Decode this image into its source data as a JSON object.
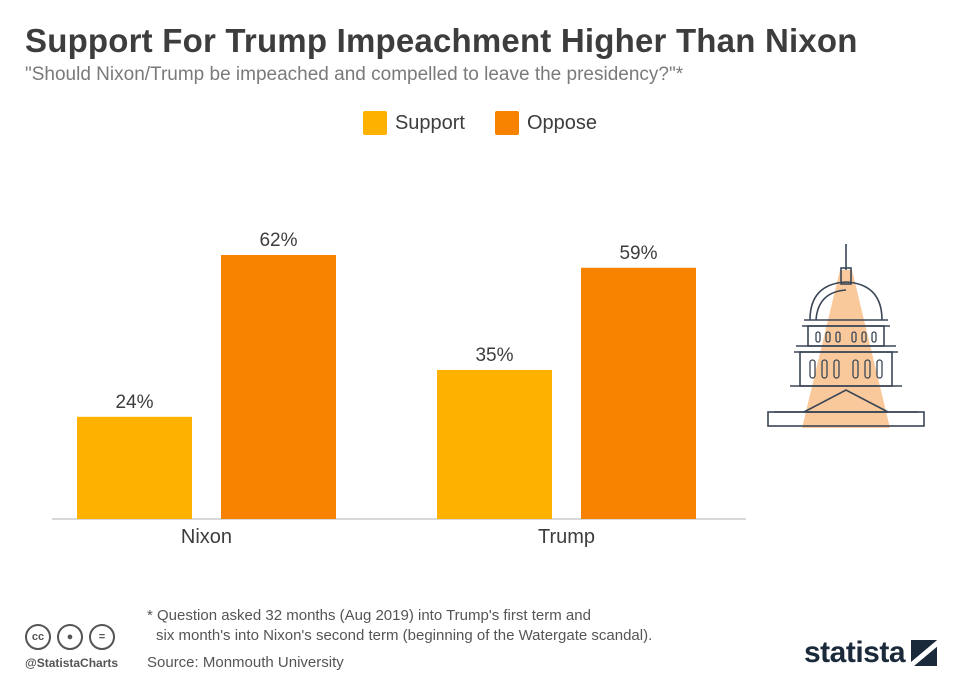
{
  "header": {
    "title": "Support For Trump Impeachment Higher Than Nixon",
    "subtitle": "\"Should Nixon/Trump be impeached and compelled to leave the presidency?\"*"
  },
  "colors": {
    "support": "#FFB100",
    "oppose": "#F78200",
    "axis": "#cccccc"
  },
  "chart_data": {
    "type": "bar",
    "title": "Support For Trump Impeachment Higher Than Nixon",
    "categories": [
      "Nixon",
      "Trump"
    ],
    "series": [
      {
        "name": "Support",
        "values": [
          24,
          35
        ],
        "labels": [
          "24%",
          "35%"
        ]
      },
      {
        "name": "Oppose",
        "values": [
          62,
          59
        ],
        "labels": [
          "62%",
          "59%"
        ]
      }
    ],
    "ylim": [
      0,
      62
    ],
    "grid": false,
    "legend": "top-center"
  },
  "footer": {
    "footnote_line1": "* Question asked 32 months (Aug 2019) into Trump's first term and",
    "footnote_line2": "six month's into Nixon's second term (beginning of the Watergate scandal).",
    "source": "Source: Monmouth University",
    "handle": "@StatistaCharts",
    "brand": "statista",
    "cc_icons": [
      "cc-icon",
      "by-icon",
      "nd-icon"
    ]
  }
}
